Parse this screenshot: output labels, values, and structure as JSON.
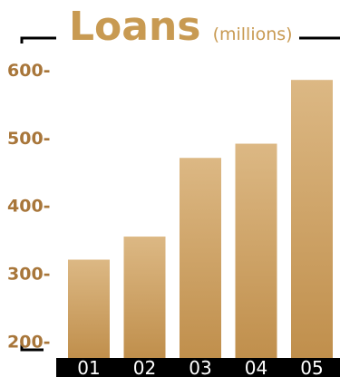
{
  "chart_data": {
    "type": "bar",
    "title": "Loans",
    "subtitle": "(millions)",
    "categories": [
      "01",
      "02",
      "03",
      "04",
      "05"
    ],
    "values": [
      320,
      354,
      470,
      491,
      585
    ],
    "yticks": [
      200,
      300,
      400,
      500,
      600
    ],
    "ytick_labels": [
      "200-",
      "300-",
      "400-",
      "500-",
      "600-"
    ],
    "ylim": [
      175,
      620
    ],
    "grid": false,
    "colors": {
      "bar_top": "#dcb884",
      "bar_bottom": "#c08f4c",
      "title": "#c89a52",
      "axis_text": "#a8763a",
      "xaxis_band": "#000000",
      "xaxis_text": "#ffffff",
      "frame": "#000000"
    }
  }
}
